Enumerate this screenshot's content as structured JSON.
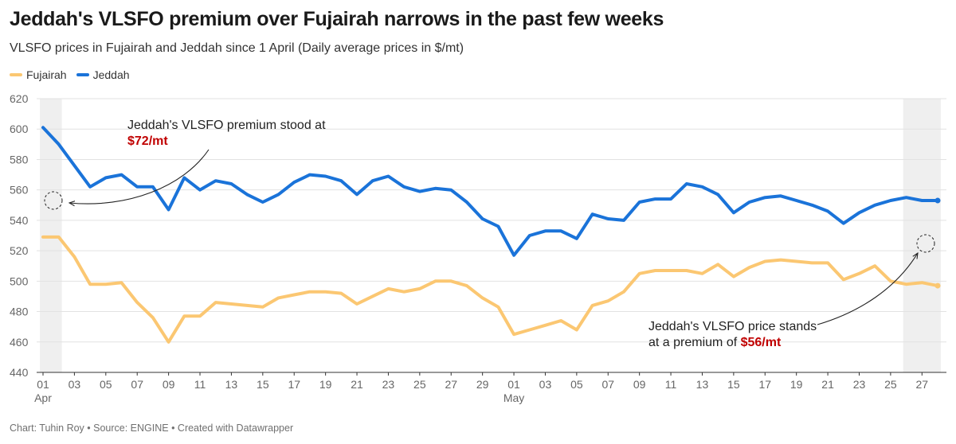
{
  "header": {
    "title": "Jeddah's VLSFO premium over Fujairah narrows in the past few weeks",
    "subtitle": "VLSFO prices in Fujairah and Jeddah since 1 April (Daily average prices in $/mt)"
  },
  "footer": {
    "text": "Chart: Tuhin Roy • Source: ENGINE • Created with Datawrapper"
  },
  "annotations": [
    {
      "line1": "Jeddah's VLSFO premium stood at",
      "highlight": "$72/mt",
      "date": "Apr 01"
    },
    {
      "line1": "Jeddah's VLSFO price stands",
      "line2_prefix": "at a premium of ",
      "highlight": "$56/mt",
      "date": "May 28"
    }
  ],
  "chart_data": {
    "type": "line",
    "title": "Jeddah's VLSFO premium over Fujairah narrows in the past few weeks",
    "subtitle": "VLSFO prices in Fujairah and Jeddah since 1 April (Daily average prices in $/mt)",
    "xlabel": "",
    "ylabel": "",
    "ylim": [
      440,
      620
    ],
    "y_ticks": [
      440,
      460,
      480,
      500,
      520,
      540,
      560,
      580,
      600,
      620
    ],
    "grid": true,
    "legend_position": "top-left",
    "x_tick_labels": [
      "01",
      "03",
      "05",
      "07",
      "09",
      "11",
      "13",
      "15",
      "17",
      "19",
      "21",
      "23",
      "25",
      "27",
      "29",
      "01",
      "03",
      "05",
      "07",
      "09",
      "11",
      "13",
      "15",
      "17",
      "19",
      "21",
      "23",
      "25",
      "27"
    ],
    "x_tick_sublabels": [
      {
        "tick": 0,
        "text": "Apr"
      },
      {
        "tick": 15,
        "text": "May"
      }
    ],
    "x": [
      "Apr 01",
      "Apr 02",
      "Apr 03",
      "Apr 04",
      "Apr 05",
      "Apr 06",
      "Apr 07",
      "Apr 08",
      "Apr 09",
      "Apr 10",
      "Apr 11",
      "Apr 12",
      "Apr 13",
      "Apr 14",
      "Apr 15",
      "Apr 16",
      "Apr 17",
      "Apr 18",
      "Apr 19",
      "Apr 20",
      "Apr 21",
      "Apr 22",
      "Apr 23",
      "Apr 24",
      "Apr 25",
      "Apr 26",
      "Apr 27",
      "Apr 28",
      "Apr 29",
      "Apr 30",
      "May 01",
      "May 02",
      "May 03",
      "May 04",
      "May 05",
      "May 06",
      "May 07",
      "May 08",
      "May 09",
      "May 10",
      "May 11",
      "May 12",
      "May 13",
      "May 14",
      "May 15",
      "May 16",
      "May 17",
      "May 18",
      "May 19",
      "May 20",
      "May 21",
      "May 22",
      "May 23",
      "May 24",
      "May 25",
      "May 26",
      "May 27",
      "May 28"
    ],
    "highlight_ranges": [
      [
        "Apr 01",
        "Apr 02"
      ],
      [
        "May 26",
        "May 28"
      ]
    ],
    "series": [
      {
        "name": "Fujairah",
        "color": "#fbc772",
        "values": [
          529,
          529,
          516,
          498,
          498,
          499,
          486,
          476,
          460,
          477,
          477,
          486,
          485,
          484,
          483,
          489,
          491,
          493,
          493,
          492,
          485,
          490,
          495,
          493,
          495,
          500,
          500,
          497,
          489,
          483,
          465,
          468,
          471,
          474,
          468,
          484,
          487,
          493,
          505,
          507,
          507,
          507,
          505,
          511,
          503,
          509,
          513,
          514,
          513,
          512,
          512,
          501,
          505,
          510,
          500,
          498,
          499,
          497
        ]
      },
      {
        "name": "Jeddah",
        "color": "#1a73d9",
        "values": [
          601,
          590,
          576,
          562,
          568,
          570,
          562,
          562,
          547,
          568,
          560,
          566,
          564,
          557,
          552,
          557,
          565,
          570,
          569,
          566,
          557,
          566,
          569,
          562,
          559,
          561,
          560,
          552,
          541,
          536,
          517,
          530,
          533,
          533,
          528,
          544,
          541,
          540,
          552,
          554,
          554,
          564,
          562,
          557,
          545,
          552,
          555,
          556,
          553,
          550,
          546,
          538,
          545,
          550,
          553,
          555,
          553,
          553
        ]
      }
    ]
  }
}
